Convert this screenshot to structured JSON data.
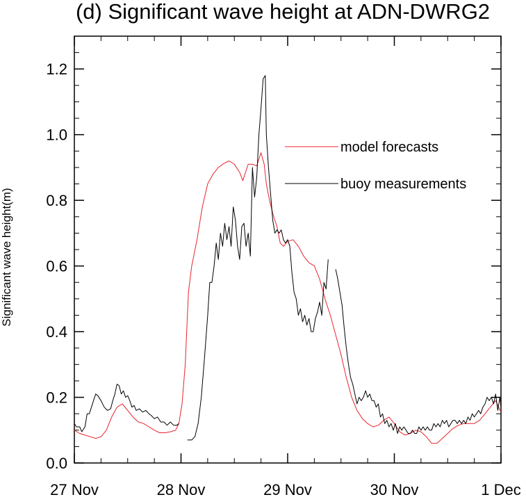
{
  "chart_data": {
    "type": "line",
    "title": "(d) Significant wave height at ADN-DWRG2",
    "xlabel": "",
    "ylabel": "Significant wave height(m)",
    "x_unit": "day",
    "xlim": [
      0,
      4
    ],
    "ylim": [
      0,
      1.3
    ],
    "x_ticks": [
      {
        "value": 0,
        "label": "27 Nov"
      },
      {
        "value": 1,
        "label": "28 Nov"
      },
      {
        "value": 2,
        "label": "29 Nov"
      },
      {
        "value": 3,
        "label": "30 Nov"
      },
      {
        "value": 4,
        "label": "1 Dec"
      }
    ],
    "y_ticks": [
      {
        "value": 0.0,
        "label": "0.0"
      },
      {
        "value": 0.2,
        "label": "0.2"
      },
      {
        "value": 0.4,
        "label": "0.4"
      },
      {
        "value": 0.6,
        "label": "0.6"
      },
      {
        "value": 0.8,
        "label": "0.8"
      },
      {
        "value": 1.0,
        "label": "1.0"
      },
      {
        "value": 1.2,
        "label": "1.2"
      }
    ],
    "grid": false,
    "legend_position": "right",
    "series": [
      {
        "name": "model forecasts",
        "color": "#e8232b",
        "points": [
          [
            0.0,
            0.1
          ],
          [
            0.05,
            0.09
          ],
          [
            0.1,
            0.085
          ],
          [
            0.15,
            0.08
          ],
          [
            0.2,
            0.075
          ],
          [
            0.25,
            0.08
          ],
          [
            0.3,
            0.1
          ],
          [
            0.35,
            0.14
          ],
          [
            0.4,
            0.17
          ],
          [
            0.45,
            0.18
          ],
          [
            0.5,
            0.16
          ],
          [
            0.55,
            0.14
          ],
          [
            0.6,
            0.125
          ],
          [
            0.65,
            0.12
          ],
          [
            0.7,
            0.11
          ],
          [
            0.75,
            0.1
          ],
          [
            0.8,
            0.092
          ],
          [
            0.85,
            0.092
          ],
          [
            0.9,
            0.095
          ],
          [
            0.95,
            0.1
          ],
          [
            0.98,
            0.12
          ],
          [
            1.01,
            0.18
          ],
          [
            1.04,
            0.3
          ],
          [
            1.07,
            0.52
          ],
          [
            1.1,
            0.6
          ],
          [
            1.15,
            0.68
          ],
          [
            1.2,
            0.78
          ],
          [
            1.25,
            0.85
          ],
          [
            1.3,
            0.88
          ],
          [
            1.35,
            0.9
          ],
          [
            1.4,
            0.912
          ],
          [
            1.45,
            0.92
          ],
          [
            1.5,
            0.91
          ],
          [
            1.55,
            0.885
          ],
          [
            1.58,
            0.86
          ],
          [
            1.61,
            0.89
          ],
          [
            1.63,
            0.91
          ],
          [
            1.67,
            0.91
          ],
          [
            1.71,
            0.905
          ],
          [
            1.75,
            0.945
          ],
          [
            1.78,
            0.91
          ],
          [
            1.8,
            0.85
          ],
          [
            1.83,
            0.8
          ],
          [
            1.86,
            0.76
          ],
          [
            1.9,
            0.72
          ],
          [
            1.93,
            0.67
          ],
          [
            1.96,
            0.66
          ],
          [
            2.0,
            0.675
          ],
          [
            2.05,
            0.68
          ],
          [
            2.1,
            0.66
          ],
          [
            2.15,
            0.63
          ],
          [
            2.2,
            0.61
          ],
          [
            2.25,
            0.6
          ],
          [
            2.3,
            0.56
          ],
          [
            2.35,
            0.5
          ],
          [
            2.4,
            0.45
          ],
          [
            2.45,
            0.39
          ],
          [
            2.5,
            0.33
          ],
          [
            2.55,
            0.26
          ],
          [
            2.6,
            0.2
          ],
          [
            2.65,
            0.16
          ],
          [
            2.7,
            0.135
          ],
          [
            2.75,
            0.12
          ],
          [
            2.8,
            0.11
          ],
          [
            2.85,
            0.115
          ],
          [
            2.9,
            0.13
          ],
          [
            2.95,
            0.14
          ],
          [
            3.0,
            0.12
          ],
          [
            3.05,
            0.095
          ],
          [
            3.1,
            0.085
          ],
          [
            3.15,
            0.09
          ],
          [
            3.2,
            0.1
          ],
          [
            3.25,
            0.095
          ],
          [
            3.3,
            0.08
          ],
          [
            3.35,
            0.06
          ],
          [
            3.4,
            0.06
          ],
          [
            3.45,
            0.075
          ],
          [
            3.5,
            0.09
          ],
          [
            3.55,
            0.105
          ],
          [
            3.6,
            0.115
          ],
          [
            3.65,
            0.12
          ],
          [
            3.7,
            0.12
          ],
          [
            3.75,
            0.12
          ],
          [
            3.8,
            0.13
          ],
          [
            3.85,
            0.15
          ],
          [
            3.9,
            0.17
          ],
          [
            3.95,
            0.19
          ],
          [
            4.0,
            0.155
          ]
        ]
      },
      {
        "name": "buoy measurements",
        "color": "#000000",
        "points": [
          [
            0.0,
            0.12
          ],
          [
            0.02,
            0.11
          ],
          [
            0.05,
            0.11
          ],
          [
            0.07,
            0.095
          ],
          [
            0.1,
            0.11
          ],
          [
            0.12,
            0.15
          ],
          [
            0.14,
            0.15
          ],
          [
            0.16,
            0.17
          ],
          [
            0.18,
            0.19
          ],
          [
            0.2,
            0.21
          ],
          [
            0.22,
            0.205
          ],
          [
            0.25,
            0.19
          ],
          [
            0.28,
            0.17
          ],
          [
            0.31,
            0.16
          ],
          [
            0.34,
            0.165
          ],
          [
            0.36,
            0.19
          ],
          [
            0.38,
            0.21
          ],
          [
            0.4,
            0.24
          ],
          [
            0.42,
            0.235
          ],
          [
            0.44,
            0.21
          ],
          [
            0.46,
            0.22
          ],
          [
            0.48,
            0.2
          ],
          [
            0.5,
            0.205
          ],
          [
            0.52,
            0.19
          ],
          [
            0.54,
            0.17
          ],
          [
            0.56,
            0.175
          ],
          [
            0.58,
            0.16
          ],
          [
            0.61,
            0.165
          ],
          [
            0.64,
            0.155
          ],
          [
            0.67,
            0.16
          ],
          [
            0.7,
            0.15
          ],
          [
            0.72,
            0.145
          ],
          [
            0.75,
            0.135
          ],
          [
            0.78,
            0.14
          ],
          [
            0.81,
            0.125
          ],
          [
            0.84,
            0.125
          ],
          [
            0.87,
            0.115
          ],
          [
            0.9,
            0.125
          ],
          [
            0.93,
            0.115
          ],
          [
            0.96,
            0.115
          ],
          [
            0.98,
            0.12
          ]
        ],
        "points_2": [
          [
            1.06,
            0.07
          ],
          [
            1.1,
            0.07
          ],
          [
            1.13,
            0.08
          ],
          [
            1.16,
            0.12
          ],
          [
            1.19,
            0.2
          ],
          [
            1.22,
            0.32
          ],
          [
            1.25,
            0.45
          ],
          [
            1.27,
            0.55
          ],
          [
            1.29,
            0.55
          ],
          [
            1.31,
            0.6
          ],
          [
            1.33,
            0.67
          ],
          [
            1.35,
            0.62
          ],
          [
            1.37,
            0.7
          ],
          [
            1.39,
            0.66
          ],
          [
            1.41,
            0.73
          ],
          [
            1.43,
            0.68
          ],
          [
            1.45,
            0.72
          ],
          [
            1.47,
            0.66
          ],
          [
            1.49,
            0.78
          ],
          [
            1.51,
            0.74
          ],
          [
            1.53,
            0.66
          ],
          [
            1.55,
            0.62
          ],
          [
            1.57,
            0.72
          ],
          [
            1.59,
            0.73
          ],
          [
            1.61,
            0.66
          ],
          [
            1.63,
            0.7
          ],
          [
            1.65,
            0.63
          ],
          [
            1.67,
            0.9
          ],
          [
            1.69,
            0.81
          ],
          [
            1.71,
            0.87
          ],
          [
            1.73,
            1.0
          ],
          [
            1.75,
            1.08
          ],
          [
            1.77,
            1.17
          ],
          [
            1.79,
            1.18
          ],
          [
            1.8,
            1.0
          ],
          [
            1.82,
            0.9
          ],
          [
            1.84,
            0.82
          ],
          [
            1.86,
            0.74
          ],
          [
            1.88,
            0.7
          ],
          [
            1.9,
            0.71
          ],
          [
            1.92,
            0.7
          ],
          [
            1.94,
            0.71
          ],
          [
            1.96,
            0.68
          ],
          [
            1.98,
            0.67
          ],
          [
            2.0,
            0.68
          ],
          [
            2.02,
            0.66
          ],
          [
            2.04,
            0.58
          ],
          [
            2.06,
            0.52
          ],
          [
            2.08,
            0.5
          ],
          [
            2.1,
            0.45
          ],
          [
            2.12,
            0.47
          ],
          [
            2.14,
            0.43
          ],
          [
            2.16,
            0.45
          ],
          [
            2.18,
            0.42
          ],
          [
            2.2,
            0.44
          ],
          [
            2.22,
            0.4
          ],
          [
            2.24,
            0.4
          ],
          [
            2.26,
            0.44
          ],
          [
            2.28,
            0.46
          ],
          [
            2.3,
            0.49
          ],
          [
            2.32,
            0.45
          ],
          [
            2.34,
            0.55
          ],
          [
            2.36,
            0.53
          ],
          [
            2.38,
            0.62
          ]
        ],
        "points_3": [
          [
            2.45,
            0.59
          ],
          [
            2.47,
            0.56
          ],
          [
            2.49,
            0.52
          ],
          [
            2.51,
            0.48
          ],
          [
            2.53,
            0.41
          ],
          [
            2.55,
            0.35
          ],
          [
            2.57,
            0.3
          ],
          [
            2.59,
            0.26
          ],
          [
            2.61,
            0.24
          ],
          [
            2.63,
            0.21
          ],
          [
            2.65,
            0.18
          ],
          [
            2.67,
            0.2
          ],
          [
            2.69,
            0.19
          ],
          [
            2.71,
            0.2
          ],
          [
            2.73,
            0.22
          ],
          [
            2.75,
            0.2
          ],
          [
            2.77,
            0.21
          ],
          [
            2.79,
            0.19
          ],
          [
            2.81,
            0.19
          ],
          [
            2.83,
            0.17
          ],
          [
            2.85,
            0.18
          ],
          [
            2.87,
            0.14
          ],
          [
            2.89,
            0.15
          ],
          [
            2.91,
            0.12
          ],
          [
            2.93,
            0.13
          ],
          [
            2.95,
            0.11
          ],
          [
            2.97,
            0.12
          ],
          [
            2.99,
            0.1
          ],
          [
            3.01,
            0.12
          ],
          [
            3.03,
            0.09
          ],
          [
            3.05,
            0.11
          ],
          [
            3.07,
            0.1
          ],
          [
            3.09,
            0.11
          ],
          [
            3.11,
            0.1
          ],
          [
            3.13,
            0.09
          ],
          [
            3.15,
            0.09
          ],
          [
            3.17,
            0.1
          ],
          [
            3.19,
            0.09
          ],
          [
            3.21,
            0.09
          ],
          [
            3.23,
            0.11
          ],
          [
            3.25,
            0.1
          ],
          [
            3.27,
            0.11
          ],
          [
            3.29,
            0.1
          ],
          [
            3.31,
            0.11
          ],
          [
            3.33,
            0.1
          ],
          [
            3.35,
            0.1
          ],
          [
            3.37,
            0.12
          ],
          [
            3.39,
            0.11
          ],
          [
            3.41,
            0.12
          ],
          [
            3.43,
            0.11
          ],
          [
            3.45,
            0.13
          ],
          [
            3.47,
            0.12
          ],
          [
            3.49,
            0.13
          ],
          [
            3.51,
            0.11
          ],
          [
            3.53,
            0.12
          ],
          [
            3.55,
            0.13
          ],
          [
            3.57,
            0.13
          ],
          [
            3.59,
            0.12
          ],
          [
            3.61,
            0.13
          ],
          [
            3.63,
            0.12
          ],
          [
            3.65,
            0.13
          ],
          [
            3.67,
            0.12
          ],
          [
            3.69,
            0.14
          ],
          [
            3.71,
            0.13
          ],
          [
            3.73,
            0.15
          ],
          [
            3.75,
            0.14
          ],
          [
            3.77,
            0.15
          ],
          [
            3.79,
            0.16
          ],
          [
            3.81,
            0.15
          ],
          [
            3.83,
            0.17
          ],
          [
            3.85,
            0.18
          ],
          [
            3.87,
            0.2
          ],
          [
            3.89,
            0.19
          ],
          [
            3.91,
            0.2
          ],
          [
            3.93,
            0.18
          ],
          [
            3.95,
            0.21
          ],
          [
            3.97,
            0.16
          ],
          [
            3.99,
            0.2
          ],
          [
            4.0,
            0.17
          ]
        ]
      }
    ]
  }
}
